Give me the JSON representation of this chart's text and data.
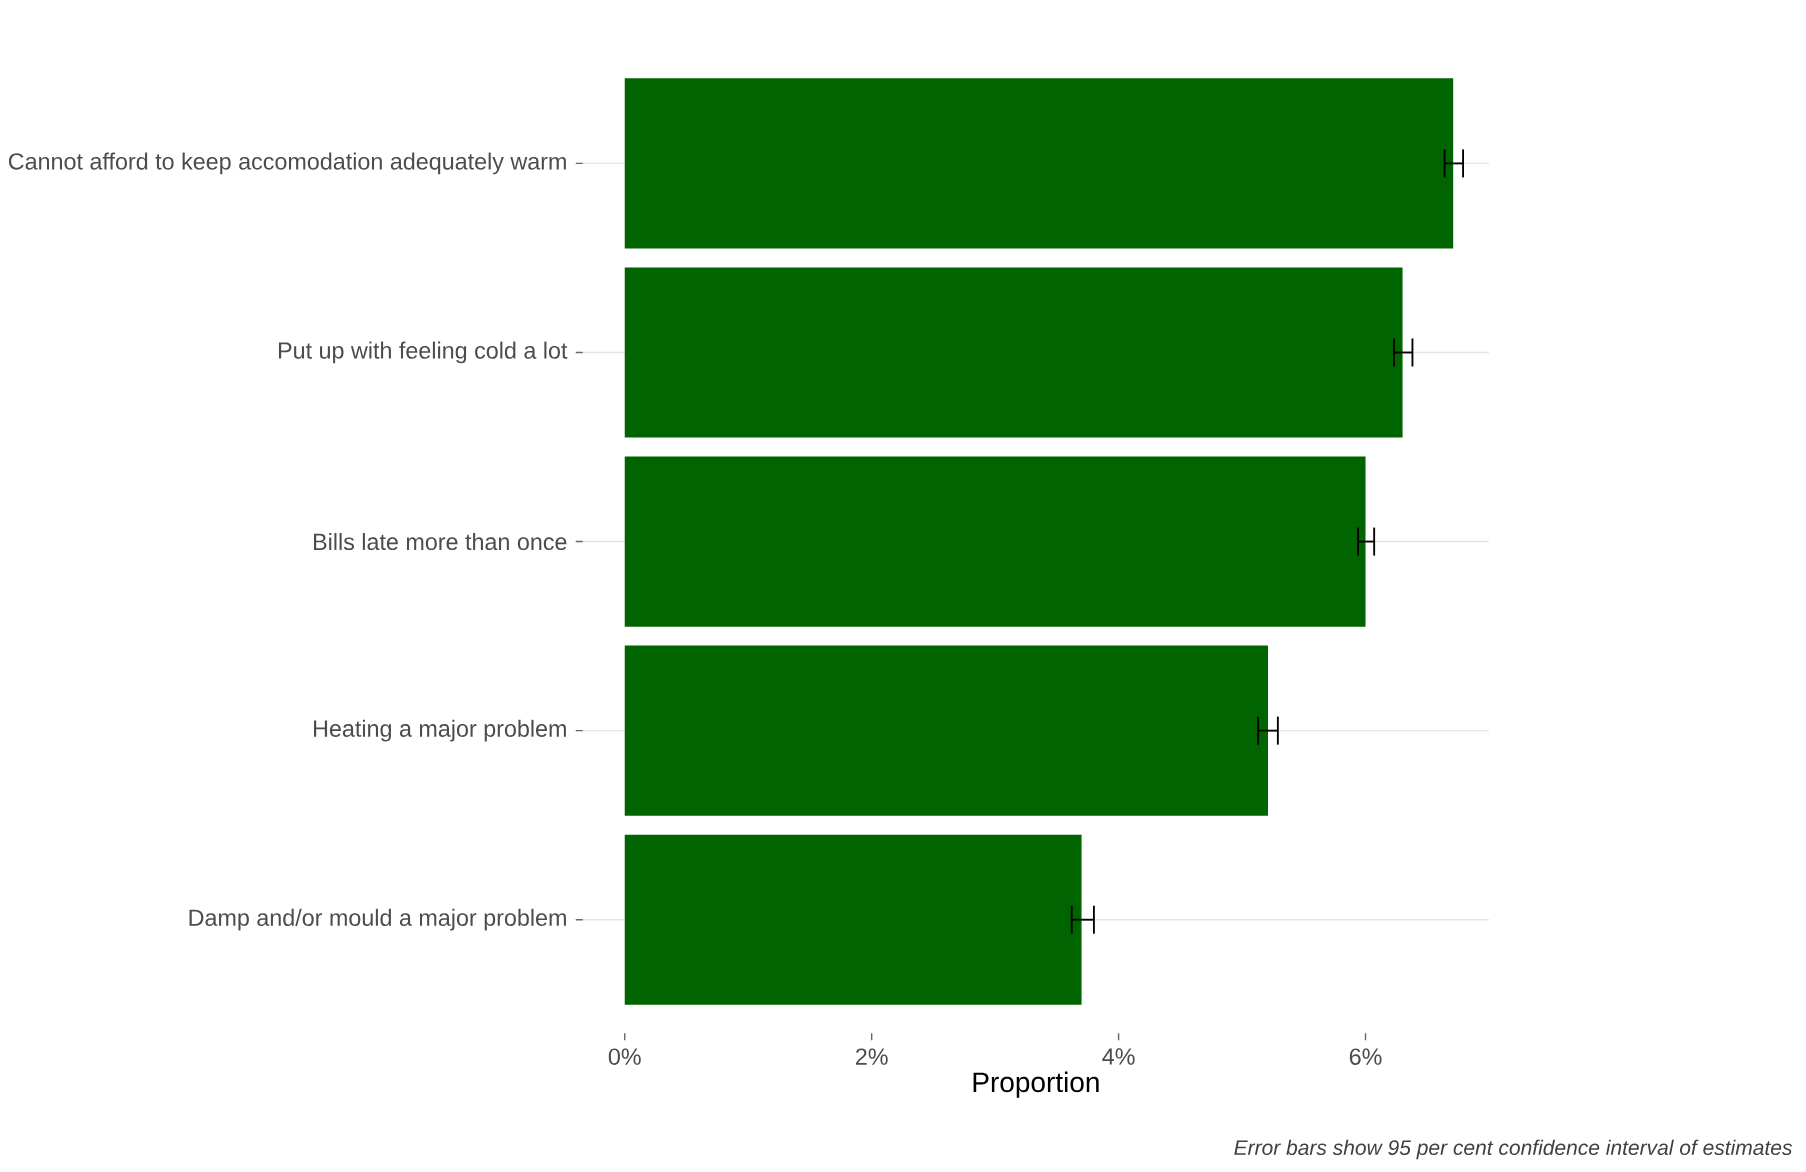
{
  "chart_data": {
    "type": "bar",
    "orientation": "horizontal",
    "xlabel": "Proportion",
    "categories": [
      "Cannot afford to keep accomodation adequately warm",
      "Put up with feeling cold a lot",
      "Bills late more than once",
      "Heating a major problem",
      "Damp and/or mould a major problem"
    ],
    "values": [
      6.71,
      6.3,
      6.0,
      5.21,
      3.7
    ],
    "errors": [
      [
        6.64,
        6.79
      ],
      [
        6.23,
        6.38
      ],
      [
        5.94,
        6.07
      ],
      [
        5.13,
        5.29
      ],
      [
        3.62,
        3.8
      ]
    ],
    "color": "#006400",
    "xlim": [
      -0.34,
      7.0
    ],
    "xticks": [
      {
        "value": 0,
        "label": "0%"
      },
      {
        "value": 2,
        "label": "2%"
      },
      {
        "value": 4,
        "label": "4%"
      },
      {
        "value": 6,
        "label": "6%"
      }
    ],
    "grid": "y",
    "annotations": [
      "Error bars show 95 per cent confidence interval of estimates"
    ]
  }
}
